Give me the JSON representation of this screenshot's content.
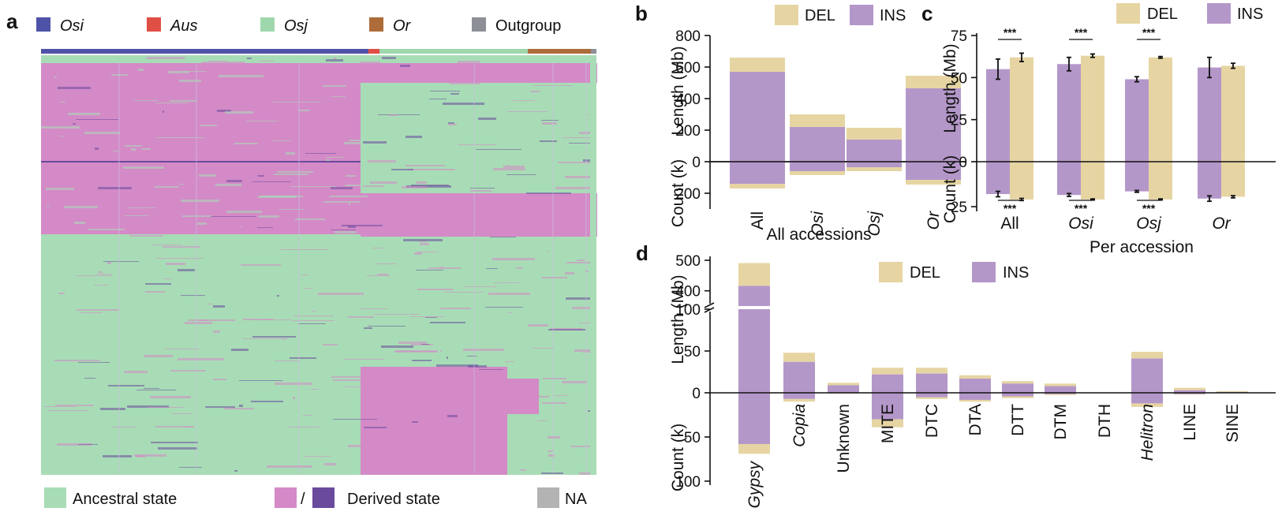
{
  "colors": {
    "DEL": "#e6d5a3",
    "INS": "#b497c9",
    "Osi": "#4f53a7",
    "Aus": "#e04f45",
    "Osj": "#9fd7ad",
    "Or": "#ad6c3a",
    "Outgroup": "#8c8f96",
    "ancestral": "#a8dcb6",
    "derived_light": "#d48ac7",
    "derived_dark": "#6a4a9c",
    "na": "#b3b3b3"
  },
  "panel_a": {
    "letter": "a",
    "groups": [
      {
        "name": "Osi",
        "italic": true,
        "color_key": "Osi"
      },
      {
        "name": "Aus",
        "italic": true,
        "color_key": "Aus"
      },
      {
        "name": "Osj",
        "italic": true,
        "color_key": "Osj"
      },
      {
        "name": "Or",
        "italic": true,
        "color_key": "Or"
      },
      {
        "name": "Outgroup",
        "italic": false,
        "color_key": "Outgroup"
      }
    ],
    "bottom_legend": {
      "ancestral": "Ancestral state",
      "slash": "/",
      "derived": "Derived state",
      "na": "NA"
    }
  },
  "chart_data": [
    {
      "panel": "b",
      "type": "bar",
      "layout": "stacked-bidirectional",
      "title": "",
      "xlabel": "All accessions",
      "ylabel_top": "Length (Mb)",
      "ylabel_bottom": "Count (k)",
      "categories": [
        "All",
        "Osi",
        "Osj",
        "Or"
      ],
      "italic_categories": [
        "Osi",
        "Osj",
        "Or"
      ],
      "legend": [
        "DEL",
        "INS"
      ],
      "length_ticks": [
        0,
        200,
        400,
        600,
        800
      ],
      "count_ticks": [
        0,
        200
      ],
      "length_ylim": [
        0,
        800
      ],
      "count_ylim": [
        0,
        240
      ],
      "series": [
        {
          "name": "INS",
          "length": [
            570,
            220,
            140,
            465
          ],
          "count": [
            140,
            60,
            35,
            115
          ]
        },
        {
          "name": "DEL",
          "length": [
            90,
            80,
            75,
            80
          ],
          "count": [
            30,
            25,
            25,
            30
          ]
        }
      ]
    },
    {
      "panel": "c",
      "type": "bar",
      "layout": "grouped-bidirectional",
      "title": "",
      "xlabel": "Per accession",
      "ylabel_top": "Length (Mb)",
      "ylabel_bottom": "Count (k)",
      "categories": [
        "All",
        "Osi",
        "Osj",
        "Or"
      ],
      "italic_categories": [
        "Osi",
        "Osj",
        "Or"
      ],
      "legend": [
        "DEL",
        "INS"
      ],
      "length_ticks": [
        0,
        25,
        50,
        75
      ],
      "count_ticks": [
        0,
        25
      ],
      "length_ylim": [
        0,
        75
      ],
      "count_ylim": [
        0,
        25
      ],
      "series": [
        {
          "name": "INS",
          "length": [
            55,
            58,
            49,
            56
          ],
          "length_err": [
            6,
            4,
            1.5,
            6
          ],
          "count": [
            18,
            18.5,
            16.5,
            20.5
          ],
          "count_err": [
            1.5,
            0.8,
            0.5,
            1.5
          ]
        },
        {
          "name": "DEL",
          "length": [
            62,
            63,
            62,
            57
          ],
          "length_err": [
            2.5,
            1,
            0.5,
            1.5
          ],
          "count": [
            21,
            21,
            21,
            19.5
          ],
          "count_err": [
            0.6,
            0.3,
            0.3,
            0.6
          ]
        }
      ],
      "significance": [
        {
          "category": "All",
          "top": "***",
          "bottom": "***"
        },
        {
          "category": "Osi",
          "top": "***",
          "bottom": "***"
        },
        {
          "category": "Osj",
          "top": "***",
          "bottom": "***"
        }
      ]
    },
    {
      "panel": "d",
      "type": "bar",
      "layout": "stacked-bidirectional-broken-axis",
      "title": "",
      "xlabel": "",
      "ylabel_top": "Length (Mb)",
      "ylabel_bottom": "Count (k)",
      "categories": [
        "Gypsy",
        "Copia",
        "Unknown",
        "MITE",
        "DTC",
        "DTA",
        "DTT",
        "DTM",
        "DTH",
        "Helitron",
        "LINE",
        "SINE"
      ],
      "italic_categories": [
        "Gypsy",
        "Copia",
        "Helitron"
      ],
      "legend": [
        "DEL",
        "INS"
      ],
      "length_ticks_low": [
        0,
        50,
        100
      ],
      "length_ticks_high": [
        400,
        500
      ],
      "length_axis_break": [
        100,
        350
      ],
      "count_ticks": [
        50,
        100
      ],
      "count_ylim": [
        0,
        110
      ],
      "series": [
        {
          "name": "INS",
          "length": [
            416,
            37,
            9,
            22,
            23,
            17,
            11,
            8,
            0,
            41,
            3,
            1
          ],
          "count": [
            58,
            7,
            0.5,
            30,
            5,
            8,
            4,
            1.5,
            0,
            12,
            1.5,
            0
          ]
        },
        {
          "name": "DEL",
          "length": [
            75,
            11,
            3,
            8,
            7,
            4,
            3,
            3,
            0,
            8,
            3,
            1
          ],
          "count": [
            11,
            3,
            0.5,
            9,
            2,
            2,
            2,
            1,
            0,
            4,
            0.5,
            0
          ]
        }
      ]
    }
  ]
}
